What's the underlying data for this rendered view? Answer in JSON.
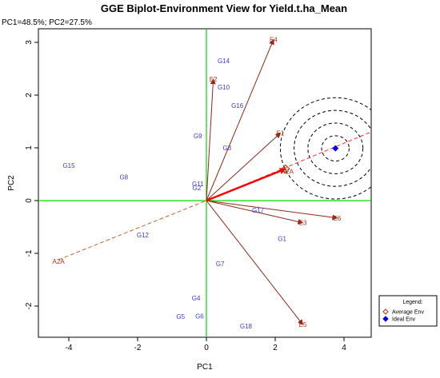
{
  "chart_data": {
    "type": "scatter",
    "title": "GGE Biplot-Environment View for Yield.t.ha_Mean",
    "subtitle": "PC1=48.5%; PC2=27.5%",
    "xlabel": "PC1",
    "ylabel": "PC2",
    "xlim": [
      -4.0,
      4.8
    ],
    "ylim": [
      -2.6,
      3.2
    ],
    "xticks": [
      -4,
      -2,
      0,
      2,
      4
    ],
    "yticks": [
      -2,
      -1,
      0,
      1,
      2,
      3
    ],
    "x_tick_labels": [
      "-4",
      "-2",
      "0",
      "2",
      "4"
    ],
    "y_tick_labels": [
      "-2",
      "-1",
      "0",
      "1",
      "2",
      "3"
    ],
    "genotypes": [
      {
        "label": "G1",
        "x": 2.2,
        "y": -0.72
      },
      {
        "label": "G2",
        "x": -0.28,
        "y": 0.24
      },
      {
        "label": "G3",
        "x": 0.6,
        "y": 1.0
      },
      {
        "label": "G4",
        "x": -0.3,
        "y": -1.85
      },
      {
        "label": "G5",
        "x": -0.75,
        "y": -2.2
      },
      {
        "label": "G6",
        "x": -0.2,
        "y": -2.19
      },
      {
        "label": "G7",
        "x": 0.4,
        "y": -1.2
      },
      {
        "label": "G8",
        "x": -2.4,
        "y": 0.45
      },
      {
        "label": "G9",
        "x": -0.25,
        "y": 1.23
      },
      {
        "label": "G10",
        "x": 0.5,
        "y": 2.15
      },
      {
        "label": "G11",
        "x": -0.25,
        "y": 0.32
      },
      {
        "label": "G12",
        "x": -1.85,
        "y": -0.65
      },
      {
        "label": "G14",
        "x": 0.5,
        "y": 2.65
      },
      {
        "label": "G15",
        "x": -4.0,
        "y": 0.67
      },
      {
        "label": "G16",
        "x": 0.9,
        "y": 1.8
      },
      {
        "label": "G17",
        "x": 1.5,
        "y": -0.18
      },
      {
        "label": "G18",
        "x": 1.15,
        "y": -2.38
      }
    ],
    "environments": [
      {
        "label": "E1",
        "x": 2.15,
        "y": 1.28
      },
      {
        "label": "E2",
        "x": 0.2,
        "y": 2.3
      },
      {
        "label": "E3",
        "x": 2.8,
        "y": -0.42
      },
      {
        "label": "E4",
        "x": 1.95,
        "y": 3.05
      },
      {
        "label": "E5",
        "x": 2.8,
        "y": -2.35
      },
      {
        "label": "E6",
        "x": 3.8,
        "y": -0.33
      },
      {
        "label": "A2A",
        "x": -4.3,
        "y": -1.15
      }
    ],
    "average_env": {
      "label": "AEA",
      "x": 2.3,
      "y": 0.6
    },
    "ideal_env": {
      "x": 3.75,
      "y": 0.99
    },
    "concentric_circle_radii": [
      0.4,
      0.8,
      1.2,
      1.6
    ],
    "colors": {
      "genotype": "#3a3ad0",
      "environment": "#b03010",
      "env_vector": "#8b2a1a",
      "aea_arrow": "#ff0000",
      "aea_dashed": "#c8642a",
      "ideal_line": "#ff3030",
      "ideal_point": "#0000ff",
      "reference_lines": "#00dd00",
      "circles": "#000000"
    },
    "legend": {
      "title": "Legend:",
      "items": [
        {
          "label": "Average Env",
          "marker": "diamond-open",
          "color": "#b03010"
        },
        {
          "label": "Ideal Env",
          "marker": "diamond-filled",
          "color": "#0000ff"
        }
      ],
      "position": "bottom-right"
    }
  }
}
